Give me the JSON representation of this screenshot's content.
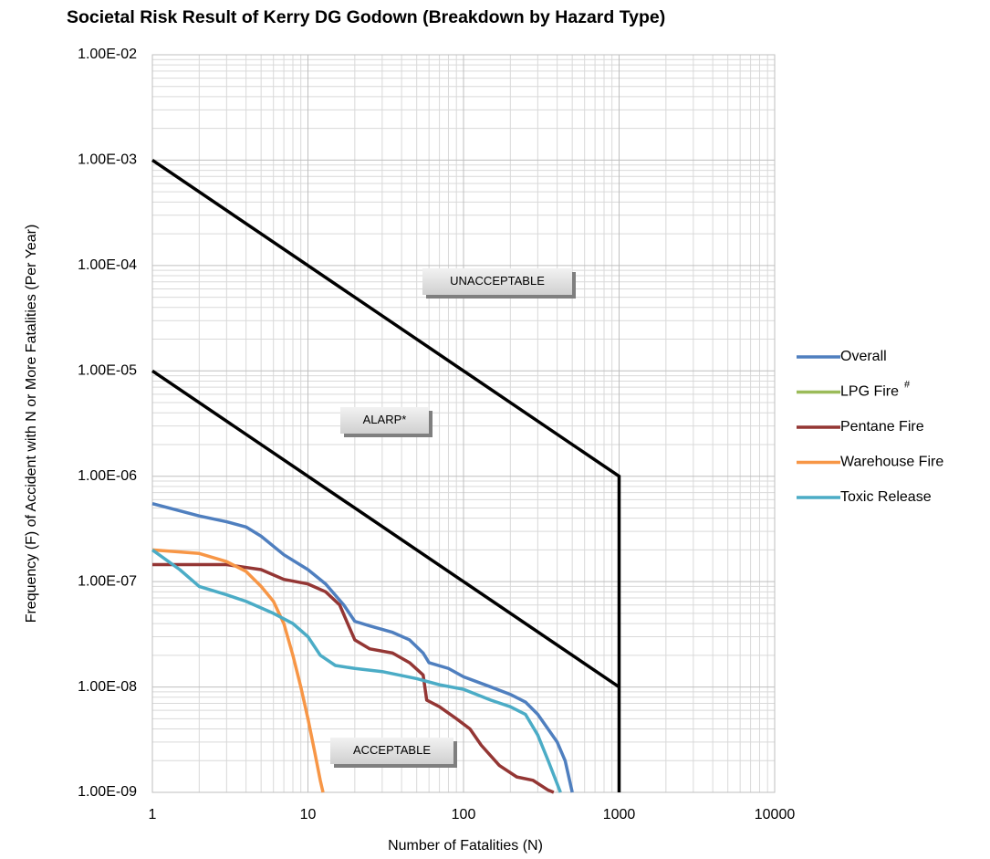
{
  "chart_data": {
    "type": "line",
    "title": "Societal Risk Result of Kerry DG Godown (Breakdown by Hazard Type)",
    "x_label": "Number  of Fatalities (N)",
    "y_label": "Frequency (F) of Accident with N or More Fatalities (Per Year)",
    "xscale": "log",
    "yscale": "log",
    "xlim": [
      1,
      10000
    ],
    "ylim": [
      1e-09,
      0.01
    ],
    "xticks": [
      1,
      10,
      100,
      1000,
      10000
    ],
    "yticks": [
      {
        "value": 1e-09,
        "label": "1.00E-09"
      },
      {
        "value": 1e-08,
        "label": "1.00E-08"
      },
      {
        "value": 1e-07,
        "label": "1.00E-07"
      },
      {
        "value": 1e-06,
        "label": "1.00E-06"
      },
      {
        "value": 1e-05,
        "label": "1.00E-05"
      },
      {
        "value": 0.0001,
        "label": "1.00E-04"
      },
      {
        "value": 0.001,
        "label": "1.00E-03"
      },
      {
        "value": 0.01,
        "label": "1.00E-02"
      }
    ],
    "grid": true,
    "minor_grid": true,
    "legend": "right",
    "series": [
      {
        "name": "Overall",
        "color": "#4f7fbf",
        "x": [
          1,
          2,
          3,
          4,
          5,
          7,
          10,
          13,
          17,
          20,
          25,
          35,
          45,
          55,
          60,
          80,
          100,
          150,
          200,
          250,
          300,
          400,
          450,
          500
        ],
        "values": [
          5.5e-07,
          4.2e-07,
          3.7e-07,
          3.3e-07,
          2.7e-07,
          1.8e-07,
          1.3e-07,
          9.5e-08,
          6e-08,
          4.2e-08,
          3.8e-08,
          3.3e-08,
          2.8e-08,
          2.1e-08,
          1.7e-08,
          1.5e-08,
          1.25e-08,
          1e-08,
          8.5e-09,
          7.2e-09,
          5.5e-09,
          3e-09,
          2e-09,
          1e-09
        ]
      },
      {
        "name": "LPG Fire",
        "superscript": "#",
        "color": "#9bbb59",
        "x": [],
        "values": []
      },
      {
        "name": "Pentane Fire",
        "color": "#943634",
        "x": [
          1,
          3,
          5,
          7,
          10,
          13,
          16,
          18,
          20,
          25,
          35,
          45,
          55,
          58,
          70,
          90,
          110,
          130,
          170,
          220,
          280,
          350,
          380
        ],
        "values": [
          1.45e-07,
          1.45e-07,
          1.3e-07,
          1.05e-07,
          9.5e-08,
          8e-08,
          6e-08,
          4e-08,
          2.8e-08,
          2.3e-08,
          2.1e-08,
          1.7e-08,
          1.3e-08,
          7.5e-09,
          6.5e-09,
          5e-09,
          4e-09,
          2.8e-09,
          1.8e-09,
          1.4e-09,
          1.3e-09,
          1.05e-09,
          1e-09
        ]
      },
      {
        "name": "Warehouse Fire",
        "color": "#f79646",
        "x": [
          1,
          2,
          3,
          4,
          5,
          6,
          7,
          8,
          9,
          10,
          11,
          12,
          12.5
        ],
        "values": [
          2e-07,
          1.85e-07,
          1.55e-07,
          1.25e-07,
          9e-08,
          6.5e-08,
          4e-08,
          2e-08,
          1e-08,
          5e-09,
          2.5e-09,
          1.3e-09,
          1e-09
        ]
      },
      {
        "name": "Toxic Release",
        "color": "#4bacc6",
        "x": [
          1,
          1.5,
          2,
          3,
          4,
          6,
          8,
          10,
          12,
          15,
          20,
          30,
          50,
          70,
          100,
          150,
          200,
          250,
          300,
          350,
          420
        ],
        "values": [
          2e-07,
          1.3e-07,
          9e-08,
          7.5e-08,
          6.5e-08,
          5e-08,
          4e-08,
          3e-08,
          2e-08,
          1.6e-08,
          1.5e-08,
          1.4e-08,
          1.2e-08,
          1.05e-08,
          9.5e-09,
          7.5e-09,
          6.5e-09,
          5.5e-09,
          3.5e-09,
          2e-09,
          1e-09
        ]
      }
    ],
    "criteria_lines": [
      {
        "color": "#000000",
        "x": [
          1,
          1000,
          1000
        ],
        "values": [
          0.001,
          1e-06,
          1e-09
        ]
      },
      {
        "color": "#000000",
        "x": [
          1,
          1000
        ],
        "values": [
          1e-05,
          1e-08
        ]
      }
    ],
    "annotations": [
      "UNACCEPTABLE",
      "ALARP*",
      "ACCEPTABLE"
    ]
  }
}
